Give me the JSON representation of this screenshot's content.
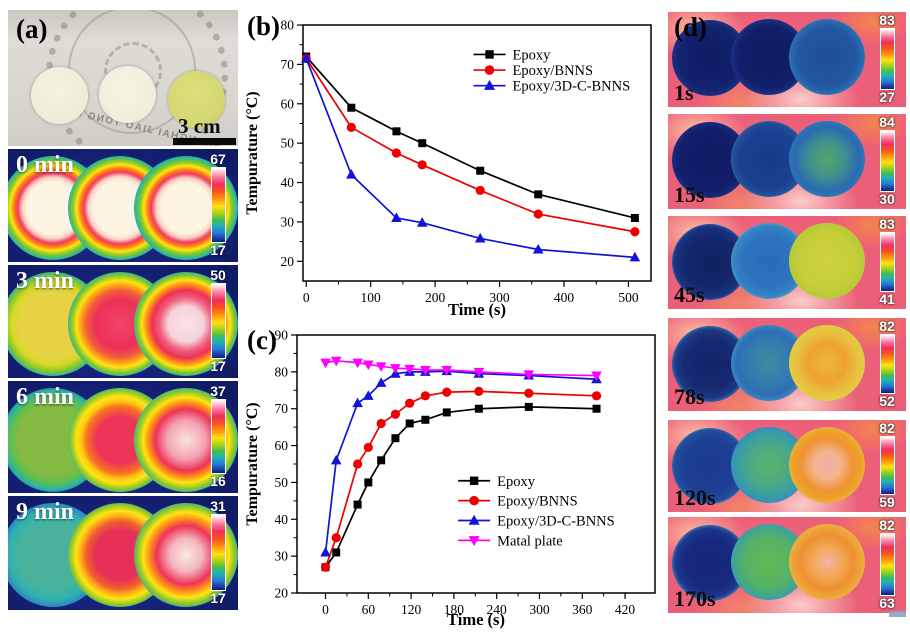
{
  "panel_a": {
    "label": "(a)",
    "photo": {
      "watermark_text": "SHANGHAI JIAO TONG UNIVER",
      "scale_bar_label": "3 cm",
      "disc_colors": [
        "#f2efdd",
        "#f5f2e2",
        "#d6da7c"
      ]
    },
    "frames": [
      {
        "label": "0 min",
        "scale_top": "67",
        "scale_bottom": "17",
        "circles": [
          "#fdf4e2 0%,#fdf4e2 36%,#f8cfc0 42%,#f23a5e 48%,#ff7e14 53%,#ffe414 58%,#7cc828 64%,#1fb2b6 71%,rgba(19,30,110,0) 82%",
          "#fdf4e2 0%,#fdf4e2 36%,#f8d5c6 43%,#f23a5e 49%,#ff7e14 54%,#ffe414 59%,#7cc828 65%,#1fb2b6 71%,rgba(19,30,110,0) 82%",
          "#fdf4e2 0%,#fdf4e2 34%,#f8cfc0 41%,#f23a5e 47%,#ff7e14 52%,#ffe414 57%,#7cc828 63%,#1fb2b6 70%,rgba(19,30,110,0) 81%"
        ]
      },
      {
        "label": "3 min",
        "scale_top": "50",
        "scale_bottom": "17",
        "circles": [
          "#e6d243 0%,#e6d243 46%,#d4da24 56%,#8cc828 64%,#24b2a4 72%,rgba(19,30,110,0) 82%",
          "#ef4468 0%,#ee3058 34%,#f2603a 46%,#ffa014 53%,#ffe414 59%,#84c828 66%,#24b0b4 72%,rgba(19,30,110,0) 82%",
          "#f9e3e3 0%,#f6d4da 24%,#f0617f 36%,#ee3058 46%,#ff9014 54%,#ffe414 60%,#84c828 66%,#24b0b4 72%,rgba(19,30,110,0) 82%"
        ]
      },
      {
        "label": "6 min",
        "scale_top": "37",
        "scale_bottom": "16",
        "circles": [
          "#82ba42 0%,#82ba42 48%,#5fc04e 58%,#28b2a8 68%,rgba(19,30,110,0) 80%",
          "#ee3458 0%,#ee3458 32%,#f8741e 46%,#ffc814 53%,#ffe414 59%,#8cc828 67%,#28b0b4 73%,rgba(19,30,110,0) 82%",
          "#f8e5dc 0%,#f4a2b2 26%,#ee3458 42%,#ff9014 51%,#ffe414 58%,#8cc828 66%,#28b0b4 73%,rgba(19,30,110,0) 82%"
        ]
      },
      {
        "label": "9 min",
        "scale_top": "31",
        "scale_bottom": "17",
        "circles": [
          "#49b29d 0%,#49b29d 46%,#31b2ae 60%,#2a84c4 72%,rgba(19,30,110,0) 82%",
          "#e73058 0%,#e73058 34%,#f0602f 46%,#ffb414 54%,#ffe414 60%,#8cc828 68%,#28a2c2 74%,rgba(19,30,110,0) 83%",
          "#f9e9e1 0%,#f5b6be 22%,#ee3458 40%,#ff9c14 51%,#ffe414 58%,#8cc828 66%,#28a2c2 74%,rgba(19,30,110,0) 83%"
        ]
      }
    ]
  },
  "panel_d": {
    "label": "(d)",
    "frames": [
      {
        "label": "1s",
        "scale_top": "83",
        "scale_bottom": "27",
        "circles": [
          "#0f1b62 0%,#13226e 58%,#1a2f84 70%,#3a86c2 76%,#bcd444 80%,#e6e050 83%,rgba(238,96,120,0) 89%",
          "#0f1b62 0%,#12206a 58%,#1a2f84 70%,#3a86c2 76%,#bcd444 80%,#e6e050 83%,rgba(238,96,120,0) 89%",
          "#1d4e96 0%,#2158a2 55%,#2a6ab2 68%,#49a0c0 75%,#bcd444 80%,#e6e050 83%,rgba(238,96,120,0) 89%"
        ]
      },
      {
        "label": "15s",
        "scale_top": "84",
        "scale_bottom": "30",
        "circles": [
          "#0f1b62 0%,#121f6a 58%,#182a7e 70%,#3a86c2 76%,#bcd444 80%,#e6e050 83%,rgba(238,96,120,0) 89%",
          "#173a8a 0%,#1b4292 55%,#235098 68%,#49a0c0 75%,#bcd444 80%,#e6e050 83%,rgba(238,96,120,0) 89%",
          "#55a66a 0%,#3f8f8f 35%,#2a6ab2 60%,#2f74b8 70%,#bcd444 80%,#e6e050 83%,rgba(238,96,120,0) 89%"
        ]
      },
      {
        "label": "45s",
        "scale_top": "83",
        "scale_bottom": "41",
        "circles": [
          "#10205e 0%,#14286e 50%,#1a3480 66%,#2f74b8 74%,#bcd444 80%,#e6e050 83%,rgba(238,96,120,0) 89%",
          "#2a6ab8 0%,#2f74be 50%,#3584c4 66%,#52aec4 74%,#bcd444 80%,#e6e050 83%,rgba(238,96,120,0) 89%",
          "#ccd23e 0%,#c6ce38 52%,#b6ca38 68%,#ccd246 78%,#dcd84c 82%,rgba(238,96,120,0) 89%"
        ]
      },
      {
        "label": "78s",
        "scale_top": "82",
        "scale_bottom": "52",
        "circles": [
          "#122268 0%,#162a72 48%,#1e3a86 64%,#2f74b8 73%,#bcd444 80%,#e6e050 83%,rgba(238,96,120,0) 89%",
          "#3e8aa0 0%,#357ab0 40%,#2d6eb4 60%,#3a8cc0 72%,#bcd444 80%,#e6e050 83%,rgba(238,96,120,0) 89%",
          "#ecb83e 0%,#eea232 35%,#e9c13e 58%,#ddcf44 72%,#eb9a32 80%,rgba(238,96,120,0) 89%"
        ]
      },
      {
        "label": "120s",
        "scale_top": "82",
        "scale_bottom": "59",
        "circles": [
          "#1a3a8e 0%,#1d4094 50%,#234c9c 66%,#3a86c2 74%,#bcd444 80%,#dedc4c 83%,rgba(238,96,120,0) 89%",
          "#5cb468 0%,#4aa888 40%,#389ca8 60%,#3a8cc0 72%,#bcd444 80%,#dedc4c 83%,rgba(238,96,120,0) 89%",
          "#f2aba4 0%,#f4b490 25%,#ef9434 48%,#eda028 62%,#e9b83c 74%,#ec9434 82%,rgba(238,96,120,0) 90%"
        ]
      },
      {
        "label": "170s",
        "scale_top": "82",
        "scale_bottom": "63",
        "circles": [
          "#14247a 0%,#172a80 48%,#1e3890 64%,#3a86c2 74%,#bcd444 80%,#dedc4c 83%,rgba(238,96,120,0) 89%",
          "#62ba58 0%,#55b264 45%,#42a68c 64%,#3a9cb4 73%,#bcd444 80%,#dedc4c 83%,rgba(238,96,120,0) 89%",
          "#f4b4ac 0%,#f2a855 28%,#ee9030 50%,#eda83a 66%,#e9b84a 76%,#ec9434 83%,rgba(238,96,120,0) 90%"
        ]
      }
    ]
  },
  "chart_data": [
    {
      "id": "b",
      "type": "line",
      "panel_label": "(b)",
      "xlabel": "Time (s)",
      "ylabel": "Tempurature (°C)",
      "xlim": [
        -5,
        535
      ],
      "ylim": [
        15,
        80
      ],
      "xticks": [
        0,
        100,
        200,
        300,
        400,
        500
      ],
      "yticks": [
        20,
        30,
        40,
        50,
        60,
        70,
        80
      ],
      "x_minor_step": 50,
      "y_minor_step": 5,
      "grid": false,
      "legend": {
        "position": "top-right",
        "x": 0.49,
        "y": 0.115,
        "dy": 0.061
      },
      "x": [
        0,
        70,
        140,
        180,
        270,
        360,
        510
      ],
      "series": [
        {
          "name": "Epoxy",
          "color": "#000000",
          "marker": "square",
          "values": [
            72,
            59,
            53,
            50,
            43,
            37,
            31
          ]
        },
        {
          "name": "Epoxy/BNNS",
          "color": "#ee0000",
          "marker": "circle",
          "values": [
            71.5,
            54,
            47.5,
            44.5,
            38,
            32,
            27.5
          ]
        },
        {
          "name": "Epoxy/3D-C-BNNS",
          "color": "#1212d8",
          "marker": "triangle-up",
          "values": [
            71.5,
            42,
            31,
            29.8,
            25.8,
            23,
            21
          ]
        }
      ]
    },
    {
      "id": "c",
      "type": "line",
      "panel_label": "(c)",
      "xlabel": "Time (s)",
      "ylabel": "Tempurature (°C)",
      "xlim": [
        -40,
        462
      ],
      "ylim": [
        20,
        90
      ],
      "xticks": [
        0,
        60,
        120,
        180,
        240,
        300,
        360,
        420
      ],
      "yticks": [
        20,
        30,
        40,
        50,
        60,
        70,
        80,
        90
      ],
      "x_minor_step": 30,
      "y_minor_step": 5,
      "grid": false,
      "legend": {
        "position": "mid-right",
        "x": 0.45,
        "y": 0.565,
        "dy": 0.077
      },
      "x": [
        0,
        15,
        45,
        60,
        78,
        98,
        118,
        140,
        170,
        215,
        285,
        380
      ],
      "series": [
        {
          "name": "Epoxy",
          "color": "#000000",
          "marker": "square",
          "values": [
            27,
            31,
            44,
            50,
            56,
            62,
            66,
            67,
            69,
            70,
            70.5,
            70
          ]
        },
        {
          "name": "Epoxy/BNNS",
          "color": "#ee0000",
          "marker": "circle",
          "values": [
            27,
            35,
            55,
            59.5,
            66,
            68.5,
            71.5,
            73.5,
            74.5,
            74.7,
            74.2,
            73.5
          ]
        },
        {
          "name": "Epoxy/3D-C-BNNS",
          "color": "#1212d8",
          "marker": "triangle-up",
          "values": [
            31,
            56,
            71.5,
            73.5,
            77,
            79.5,
            80,
            80,
            80.2,
            79.5,
            79,
            78
          ]
        },
        {
          "name": "Matal plate",
          "color": "#ff00ff",
          "marker": "triangle-down",
          "values": [
            82.5,
            83,
            82.5,
            82,
            81.5,
            81,
            80.8,
            80.5,
            80.5,
            80,
            79.3,
            79
          ]
        }
      ]
    }
  ]
}
